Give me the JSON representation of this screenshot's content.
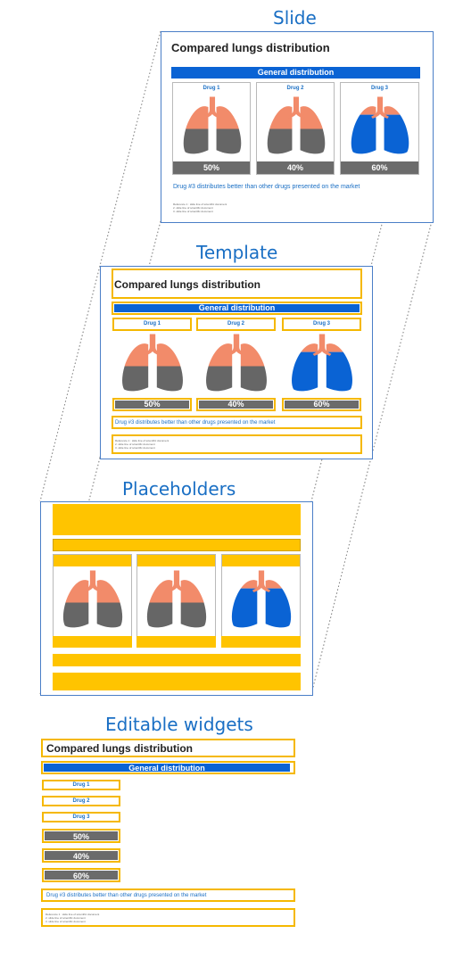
{
  "sections": {
    "slide": "Slide",
    "template": "Template",
    "placeholders": "Placeholders",
    "widgets": "Editable widgets"
  },
  "slide_content": {
    "title": "Compared lungs distribution",
    "subtitle": "General distribution",
    "drugs": [
      "Drug 1",
      "Drug 2",
      "Drug 3"
    ],
    "percents": [
      "50%",
      "40%",
      "60%"
    ],
    "message": "Drug #3 distributes better than other drugs presented on the market",
    "footnotes": [
      "Reference 1 : slide line of scientific document",
      "2. slide line of scientific document",
      "3. slide line of scientific document"
    ]
  },
  "colors": {
    "accent": "#0a63d4",
    "highlight": "#ffc400",
    "lung_top": "#f28b6a",
    "lung_bottom": "#666666",
    "lung_blue": "#0a63d4",
    "title_blue": "#1a6fc4"
  }
}
